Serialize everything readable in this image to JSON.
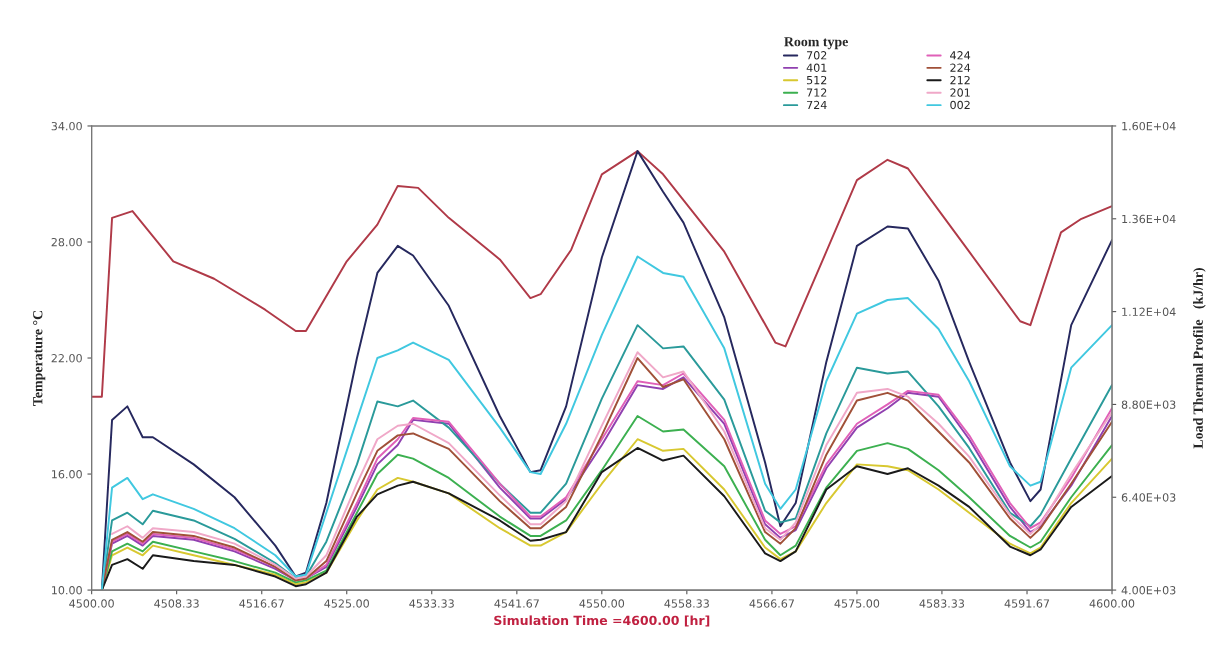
{
  "chart_data": {
    "type": "line",
    "xlabel": "Simulation Time =4600.00 [hr]",
    "ylabel": "Temperature °C",
    "y2label": "Load Thermal Profile   (kJ/hr)",
    "legend_title": "Room type",
    "legend": "top",
    "grid": false,
    "marker": "none",
    "line_style": "solid",
    "x": [
      4501,
      4502,
      4503.5,
      4505,
      4506,
      4510,
      4514,
      4518,
      4520,
      4521,
      4523,
      4526,
      4528,
      4530,
      4531.5,
      4535,
      4540,
      4543,
      4544,
      4546.5,
      4550,
      4553.5,
      4556,
      4558,
      4562,
      4566,
      4567.5,
      4569,
      4572,
      4575,
      4578,
      4580,
      4583,
      4586,
      4590,
      4592,
      4593,
      4596,
      4600
    ],
    "xlim": [
      4500,
      4600
    ],
    "xticks": [
      {
        "value": 4500,
        "label": "4500.00"
      },
      {
        "value": 4508.33,
        "label": "4508.33"
      },
      {
        "value": 4516.67,
        "label": "4516.67"
      },
      {
        "value": 4525,
        "label": "4525.00"
      },
      {
        "value": 4533.33,
        "label": "4533.33"
      },
      {
        "value": 4541.67,
        "label": "4541.67"
      },
      {
        "value": 4550,
        "label": "4550.00"
      },
      {
        "value": 4558.33,
        "label": "4558.33"
      },
      {
        "value": 4566.67,
        "label": "4566.67"
      },
      {
        "value": 4575,
        "label": "4575.00"
      },
      {
        "value": 4583.33,
        "label": "4583.33"
      },
      {
        "value": 4591.67,
        "label": "4591.67"
      },
      {
        "value": 4600,
        "label": "4600.00"
      }
    ],
    "ylim": [
      10,
      34
    ],
    "yticks": [
      {
        "value": 10,
        "label": "10.00"
      },
      {
        "value": 16,
        "label": "16.00"
      },
      {
        "value": 22,
        "label": "22.00"
      },
      {
        "value": 28,
        "label": "28.00"
      },
      {
        "value": 34,
        "label": "34.00"
      }
    ],
    "y2lim": [
      4000,
      16000
    ],
    "y2ticks": [
      {
        "value": 4000,
        "label": "4.00E+03"
      },
      {
        "value": 6400,
        "label": "6.40E+03"
      },
      {
        "value": 8800,
        "label": "8.80E+03"
      },
      {
        "value": 11200,
        "label": "1.12E+04"
      },
      {
        "value": 13600,
        "label": "1.36E+04"
      },
      {
        "value": 16000,
        "label": "1.60E+04"
      }
    ],
    "series": [
      {
        "color": "#b03a48",
        "x": [
          4500,
          4501,
          4502,
          4504,
          4508,
          4512,
          4517,
          4520,
          4521,
          4525,
          4528,
          4530,
          4532,
          4535,
          4540,
          4543,
          4544,
          4547,
          4550,
          4553.5,
          4556,
          4562,
          4567,
          4568,
          4572,
          4575,
          4578,
          4580,
          4583,
          4586,
          4591,
          4592,
          4595,
          4597,
          4600
        ],
        "values": [
          20.0,
          20.0,
          29.25,
          29.6,
          27.0,
          26.1,
          24.5,
          23.4,
          23.4,
          27.0,
          28.9,
          30.9,
          30.8,
          29.25,
          27.1,
          25.1,
          25.3,
          27.6,
          31.5,
          32.7,
          31.5,
          27.5,
          22.8,
          22.6,
          27.5,
          31.2,
          32.25,
          31.8,
          29.65,
          27.5,
          23.9,
          23.7,
          28.5,
          29.2,
          29.85
        ]
      },
      {
        "name": "702",
        "color": "#26285e",
        "values": [
          10,
          18.8,
          19.5,
          17.9,
          17.9,
          16.5,
          14.8,
          12.3,
          10.7,
          10.9,
          14.5,
          22.0,
          26.4,
          27.8,
          27.3,
          24.7,
          19.0,
          16.1,
          16.2,
          19.5,
          27.2,
          32.7,
          30.6,
          29.0,
          24.1,
          16.6,
          13.3,
          14.5,
          21.8,
          27.8,
          28.8,
          28.7,
          26.0,
          21.8,
          16.6,
          14.6,
          15.2,
          23.7,
          28.1
        ]
      },
      {
        "name": "401",
        "color": "#9040b0",
        "values": [
          10,
          12.4,
          12.8,
          12.3,
          12.8,
          12.6,
          12.0,
          11.1,
          10.5,
          10.6,
          11.2,
          14.3,
          16.5,
          17.5,
          18.8,
          18.6,
          15.3,
          13.7,
          13.7,
          14.7,
          17.5,
          20.6,
          20.4,
          21.0,
          18.6,
          13.4,
          12.7,
          13.1,
          16.3,
          18.4,
          19.4,
          20.2,
          20.0,
          17.8,
          14.3,
          13.0,
          13.3,
          15.4,
          19.0
        ]
      },
      {
        "name": "512",
        "color": "#d8c830",
        "values": [
          10,
          11.8,
          12.2,
          11.8,
          12.3,
          11.8,
          11.3,
          10.8,
          10.3,
          10.4,
          10.9,
          13.6,
          15.2,
          15.8,
          15.6,
          15.0,
          13.2,
          12.3,
          12.3,
          13.0,
          15.5,
          17.8,
          17.2,
          17.3,
          15.2,
          12.2,
          11.6,
          12.0,
          14.5,
          16.5,
          16.4,
          16.2,
          15.2,
          14.0,
          12.4,
          11.9,
          12.2,
          14.5,
          16.8
        ]
      },
      {
        "name": "712",
        "color": "#3cb050",
        "values": [
          10,
          12.0,
          12.4,
          12.0,
          12.5,
          12.0,
          11.5,
          10.9,
          10.4,
          10.5,
          11.0,
          14.0,
          16.0,
          17.0,
          16.8,
          15.8,
          13.8,
          12.8,
          12.8,
          13.6,
          16.2,
          19.0,
          18.2,
          18.3,
          16.4,
          12.6,
          11.8,
          12.3,
          15.3,
          17.2,
          17.6,
          17.3,
          16.2,
          14.8,
          12.8,
          12.2,
          12.5,
          14.8,
          17.5
        ]
      },
      {
        "name": "724",
        "color": "#2a9a9a",
        "values": [
          10,
          13.6,
          14.0,
          13.4,
          14.1,
          13.6,
          12.65,
          11.4,
          10.6,
          10.7,
          12.5,
          16.5,
          19.75,
          19.5,
          19.8,
          18.4,
          15.5,
          14.0,
          14.0,
          15.5,
          19.9,
          23.7,
          22.5,
          22.6,
          19.85,
          14.1,
          13.5,
          13.7,
          18.1,
          21.5,
          21.2,
          21.3,
          19.5,
          17.35,
          14.0,
          13.3,
          13.9,
          16.8,
          20.6
        ]
      },
      {
        "name": "424",
        "color": "#e060b8",
        "values": [
          10,
          12.5,
          12.9,
          12.4,
          12.9,
          12.7,
          12.1,
          11.2,
          10.5,
          10.6,
          11.3,
          14.5,
          16.8,
          17.8,
          18.9,
          18.7,
          15.5,
          13.8,
          13.8,
          14.8,
          17.8,
          20.8,
          20.6,
          21.2,
          18.8,
          13.6,
          12.9,
          13.3,
          16.5,
          18.6,
          19.6,
          20.3,
          20.1,
          18.0,
          14.5,
          13.2,
          13.5,
          15.8,
          19.4
        ]
      },
      {
        "name": "224",
        "color": "#a05038",
        "values": [
          10,
          12.6,
          13.0,
          12.5,
          13.0,
          12.8,
          12.2,
          11.2,
          10.5,
          10.6,
          11.5,
          15.0,
          17.2,
          18.0,
          18.1,
          17.3,
          14.6,
          13.2,
          13.2,
          14.3,
          18.0,
          22.0,
          20.5,
          20.9,
          17.8,
          13.0,
          12.4,
          13.2,
          17.0,
          19.8,
          20.2,
          19.8,
          18.2,
          16.6,
          13.7,
          12.7,
          13.2,
          15.5,
          18.7
        ]
      },
      {
        "name": "212",
        "color": "#1a1a1a",
        "values": [
          10,
          11.3,
          11.6,
          11.1,
          11.8,
          11.5,
          11.3,
          10.7,
          10.2,
          10.3,
          10.9,
          13.8,
          14.95,
          15.4,
          15.6,
          15.0,
          13.6,
          12.55,
          12.6,
          13.0,
          16.1,
          17.35,
          16.7,
          16.95,
          14.85,
          11.9,
          11.5,
          12.0,
          15.2,
          16.4,
          16.0,
          16.3,
          15.4,
          14.3,
          12.25,
          11.8,
          12.1,
          14.3,
          15.9
        ]
      },
      {
        "name": "201",
        "color": "#f0a8c8",
        "values": [
          null,
          12.9,
          13.3,
          12.7,
          13.2,
          13.0,
          12.4,
          11.3,
          10.6,
          10.7,
          11.8,
          15.5,
          17.8,
          18.5,
          18.6,
          17.6,
          14.9,
          13.4,
          13.4,
          14.6,
          18.5,
          22.3,
          21.0,
          21.3,
          18.2,
          13.2,
          12.6,
          13.5,
          17.5,
          20.2,
          20.4,
          20.0,
          18.6,
          16.9,
          13.9,
          12.9,
          13.4,
          16.0,
          19.2
        ]
      },
      {
        "name": "002",
        "color": "#40c8e0",
        "values": [
          10,
          15.3,
          15.8,
          14.7,
          14.95,
          14.2,
          13.2,
          11.8,
          10.7,
          10.8,
          14.0,
          18.8,
          22.0,
          22.4,
          22.8,
          21.9,
          18.4,
          16.1,
          16.0,
          18.6,
          23.2,
          27.25,
          26.4,
          26.2,
          22.5,
          15.5,
          14.2,
          15.2,
          20.8,
          24.3,
          25.0,
          25.1,
          23.5,
          20.8,
          16.4,
          15.4,
          15.6,
          21.5,
          23.7
        ]
      }
    ]
  }
}
